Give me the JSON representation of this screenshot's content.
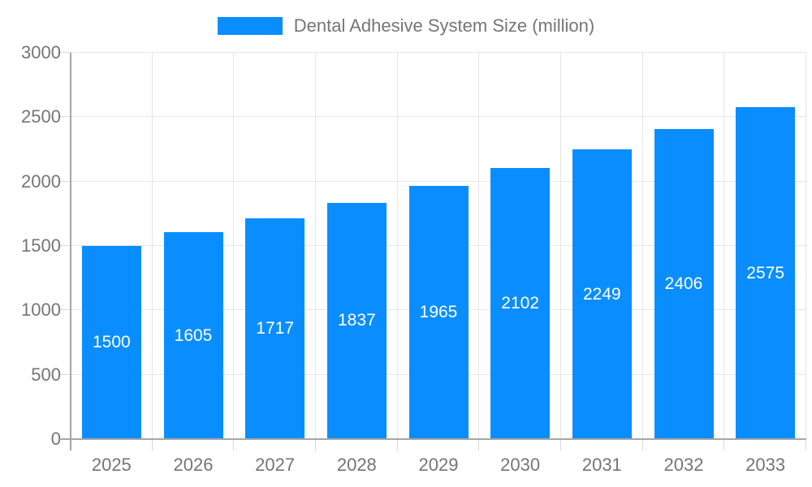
{
  "legend": {
    "label": "Dental Adhesive System Size (million)"
  },
  "chart_data": {
    "type": "bar",
    "title": "Dental Adhesive System Size (million)",
    "categories": [
      "2025",
      "2026",
      "2027",
      "2028",
      "2029",
      "2030",
      "2031",
      "2032",
      "2033"
    ],
    "series": [
      {
        "name": "Dental Adhesive System Size (million)",
        "values": [
          1500,
          1605,
          1717,
          1837,
          1965,
          2102,
          2249,
          2406,
          2575
        ]
      }
    ],
    "values": [
      1500,
      1605,
      1717,
      1837,
      1965,
      2102,
      2249,
      2406,
      2575
    ],
    "value_labels": [
      "1500",
      "1605",
      "1717",
      "1837",
      "1965",
      "2102",
      "2249",
      "2406",
      "2575"
    ],
    "xlabel": "",
    "ylabel": "",
    "ylim": [
      0,
      3000
    ],
    "yticks": [
      0,
      500,
      1000,
      1500,
      2000,
      2500,
      3000
    ],
    "grid": true,
    "legend_position": "top",
    "colors": {
      "bar": "#0a8eff",
      "grid": "#e6e6e6",
      "axis": "#a6a6a6",
      "tick": "#d9d9d9",
      "tick_label": "#757575",
      "value_label": "#ffffff",
      "background": "#ffffff"
    }
  }
}
